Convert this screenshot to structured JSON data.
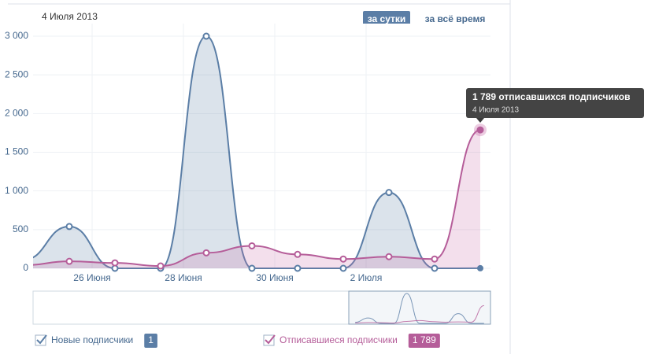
{
  "header": {
    "date": "4 Июля 2013",
    "buttons": [
      "за сутки",
      "за всё время"
    ]
  },
  "chart_data": {
    "type": "area",
    "categories": [
      null,
      null,
      "26 Июня",
      null,
      "28 Июня",
      null,
      "30 Июня",
      null,
      "2 Июля",
      null,
      null
    ],
    "series": [
      {
        "name": "Новые подписчики",
        "color": "#5b7ea6",
        "values": [
          110,
          540,
          0,
          0,
          3000,
          0,
          0,
          0,
          980,
          0,
          1
        ]
      },
      {
        "name": "Отписавшиеся подписчики",
        "color": "#b55d99",
        "values": [
          40,
          90,
          70,
          30,
          200,
          290,
          180,
          120,
          150,
          120,
          1789
        ],
        "value_labels": [
          null,
          null,
          null,
          null,
          null,
          null,
          null,
          null,
          null,
          null,
          "1 789"
        ]
      }
    ],
    "ylim": [
      0,
      3000
    ],
    "yticks": [
      0,
      500,
      {
        "value": 1000,
        "label": "1 000"
      },
      {
        "value": 1500,
        "label": "1 500"
      },
      {
        "value": 2000,
        "label": "2 000"
      },
      {
        "value": 2500,
        "label": "2 500"
      },
      {
        "value": 3000,
        "label": "3 000"
      }
    ],
    "grid": true,
    "tooltip": {
      "title": "1 789 отписавшихся подписчиков",
      "date": "4 Июля 2013"
    }
  }
}
